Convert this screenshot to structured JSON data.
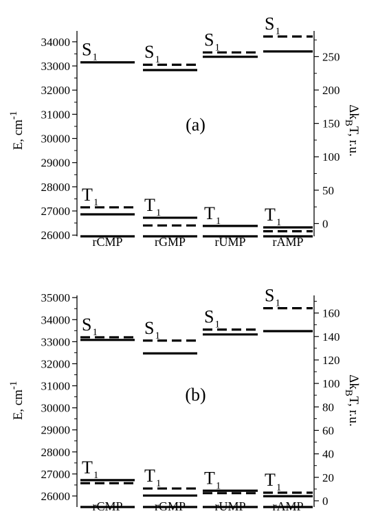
{
  "chart_data": [
    {
      "type": "level-diagram",
      "panel_label": "(a)",
      "ylabel": "E, cm-1",
      "ylabel_base": "E, cm",
      "ylabel_sup": "-1",
      "y2label": "ΔkBT, r.u.",
      "y2label_pre": "Δk",
      "y2label_sub": "B",
      "y2label_post": "T, r.u.",
      "ylim": [
        25950,
        34450
      ],
      "yticks": [
        26000,
        27000,
        28000,
        29000,
        30000,
        31000,
        32000,
        33000,
        34000
      ],
      "y2lim": [
        -19.1,
        288.5
      ],
      "y2ticks": [
        0,
        50,
        100,
        150,
        200,
        250
      ],
      "categories": [
        "rCMP",
        "rGMP",
        "rUMP",
        "rAMP"
      ],
      "series": [
        {
          "style": "solid",
          "axis": "left",
          "S1": [
            33150,
            32830,
            33380,
            33600
          ],
          "T1": [
            26860,
            26720,
            26380,
            26320
          ]
        },
        {
          "style": "dashed",
          "axis": "left",
          "S1": [
            null,
            33050,
            33560,
            34220
          ],
          "T1": [
            27150,
            26400,
            null,
            26160
          ]
        }
      ],
      "level_labels": {
        "S": "S",
        "T": "T",
        "sub": "1"
      }
    },
    {
      "type": "level-diagram",
      "panel_label": "(b)",
      "ylabel": "E, cm-1",
      "ylabel_base": "E, cm",
      "ylabel_sup": "-1",
      "y2label": "ΔkBT, r.u.",
      "y2label_pre": "Δk",
      "y2label_sub": "B",
      "y2label_post": "T, r.u.",
      "ylim": [
        25500,
        35100
      ],
      "yticks": [
        26000,
        27000,
        28000,
        29000,
        30000,
        31000,
        32000,
        33000,
        34000,
        35000
      ],
      "y2lim": [
        -5.3,
        175
      ],
      "y2ticks": [
        0,
        20,
        40,
        60,
        80,
        100,
        120,
        140,
        160
      ],
      "categories": [
        "rCMP",
        "rGMP",
        "rUMP",
        "rAMP"
      ],
      "series": [
        {
          "style": "solid",
          "axis": "left",
          "S1": [
            33080,
            32470,
            33330,
            33480
          ],
          "T1": [
            26720,
            26020,
            26240,
            25990
          ]
        },
        {
          "style": "dashed",
          "axis": "left",
          "S1": [
            33200,
            33050,
            33550,
            34520
          ],
          "T1": [
            26580,
            26340,
            26130,
            26150
          ]
        }
      ],
      "level_labels": {
        "S": "S",
        "T": "T",
        "sub": "1"
      }
    }
  ]
}
